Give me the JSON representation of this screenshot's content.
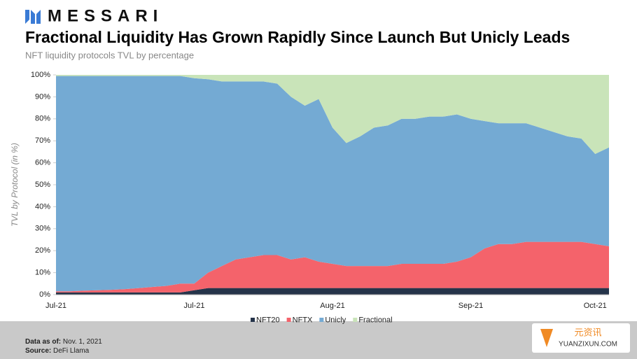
{
  "brand": "MESSARI",
  "chart_data": {
    "type": "stacked_area",
    "title": "Fractional Liquidity Has Grown Rapidly Since Launch But Unicly Leads",
    "subtitle": "NFT liquidity protocols TVL by percentage",
    "y_label": "TVL by Protocol (in %)",
    "categories": [
      "Jul-21",
      null,
      null,
      null,
      null,
      null,
      null,
      null,
      null,
      null,
      "Jul-21",
      null,
      null,
      null,
      null,
      null,
      null,
      null,
      null,
      null,
      "Aug-21",
      null,
      null,
      null,
      null,
      null,
      null,
      null,
      null,
      null,
      "Sep-21",
      null,
      null,
      null,
      null,
      null,
      null,
      null,
      null,
      "Oct-21",
      null
    ],
    "series": [
      {
        "name": "NFT20",
        "color": "#25344a",
        "values": [
          1,
          1,
          1,
          1,
          1,
          1,
          1,
          1,
          1,
          1,
          2,
          3,
          3,
          3,
          3,
          3,
          3,
          3,
          3,
          3,
          3,
          3,
          3,
          3,
          3,
          3,
          3,
          3,
          3,
          3,
          3,
          3,
          3,
          3,
          3,
          3,
          3,
          3,
          3,
          3,
          3
        ]
      },
      {
        "name": "NFTX",
        "color": "#f4636b",
        "values": [
          0.5,
          0.5,
          0.8,
          1,
          1.2,
          1.5,
          2,
          2.5,
          3,
          4,
          3,
          7,
          10,
          13,
          14,
          15,
          15,
          13,
          14,
          12,
          11,
          10,
          10,
          10,
          10,
          11,
          11,
          11,
          11,
          12,
          14,
          18,
          20,
          20,
          21,
          21,
          21,
          21,
          21,
          20,
          19
        ]
      },
      {
        "name": "Unicly",
        "color": "#74aad3",
        "values": [
          98,
          98,
          97.7,
          97.5,
          97.3,
          97,
          96.5,
          96,
          95.5,
          94.5,
          93.5,
          88,
          84,
          81,
          80,
          79,
          78,
          74,
          69,
          74,
          62,
          56,
          59,
          63,
          64,
          66,
          66,
          67,
          67,
          67,
          63,
          58,
          55,
          55,
          54,
          52,
          50,
          48,
          47,
          41,
          45
        ]
      },
      {
        "name": "Fractional",
        "color": "#c9e4b9",
        "values": [
          0.5,
          0.5,
          0.5,
          0.5,
          0.5,
          0.5,
          0.5,
          0.5,
          0.5,
          0.5,
          1.5,
          2,
          3,
          3,
          3,
          3,
          4,
          10,
          14,
          11,
          24,
          31,
          28,
          24,
          23,
          20,
          20,
          19,
          19,
          18,
          20,
          21,
          22,
          22,
          22,
          24,
          26,
          28,
          29,
          36,
          33
        ]
      }
    ],
    "ylim": [
      0,
      100
    ],
    "yticks": [
      {
        "value": 0,
        "label": "0%"
      },
      {
        "value": 10,
        "label": "10%"
      },
      {
        "value": 20,
        "label": "20%"
      },
      {
        "value": 30,
        "label": "30%"
      },
      {
        "value": 40,
        "label": "40%"
      },
      {
        "value": 50,
        "label": "50%"
      },
      {
        "value": 60,
        "label": "60%"
      },
      {
        "value": 70,
        "label": "70%"
      },
      {
        "value": 80,
        "label": "80%"
      },
      {
        "value": 90,
        "label": "90%"
      },
      {
        "value": 100,
        "label": "100%"
      }
    ],
    "legend": "bottom"
  },
  "footer": {
    "data_label": "Data as of:",
    "data_date": "Nov. 1, 2021",
    "source_label": "Source:",
    "source": "DeFi Llama"
  },
  "watermark": {
    "name": "元资讯",
    "url": "YUANZIXUN.COM"
  }
}
